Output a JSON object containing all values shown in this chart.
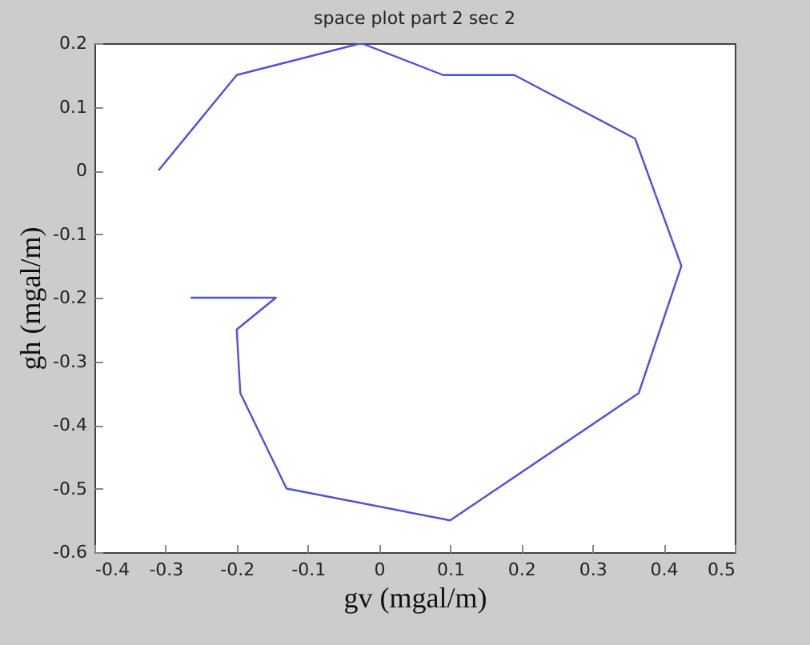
{
  "chart_data": {
    "type": "line",
    "title": "space plot part 2 sec 2",
    "xlabel": "gv (mgal/m)",
    "ylabel": "gh (mgal/m)",
    "x": [
      -0.31,
      -0.2,
      -0.025,
      0.09,
      0.19,
      0.36,
      0.425,
      0.365,
      0.1,
      -0.13,
      -0.195,
      -0.2,
      -0.145,
      -0.265
    ],
    "series": [
      {
        "color": "#5050e0",
        "values": [
          0,
          0.15,
          0.2,
          0.15,
          0.15,
          0.05,
          -0.15,
          -0.35,
          -0.55,
          -0.5,
          -0.35,
          -0.25,
          -0.2,
          -0.2
        ]
      }
    ],
    "xlim": [
      -0.4,
      0.5
    ],
    "xticks": [
      -0.4,
      -0.3,
      -0.2,
      -0.1,
      0,
      0.1,
      0.2,
      0.3,
      0.4,
      0.5
    ],
    "ylim": [
      -0.6,
      0.2
    ],
    "yticks": [
      -0.6,
      -0.5,
      -0.4,
      -0.3,
      -0.2,
      -0.1,
      0,
      0.1,
      0.2
    ],
    "grid": false,
    "marker": "none",
    "line_style": "solid"
  }
}
